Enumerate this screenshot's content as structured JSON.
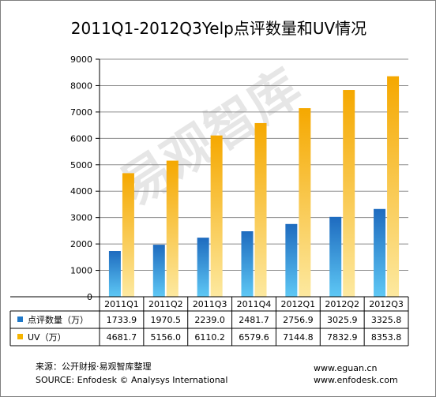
{
  "chart_data": {
    "type": "bar",
    "title": "2011Q1-2012Q3Yelp点评数量和UV情况",
    "categories": [
      "2011Q1",
      "2011Q2",
      "2011Q3",
      "2011Q4",
      "2012Q1",
      "2012Q2",
      "2012Q3"
    ],
    "series": [
      {
        "name": "点评数量（万）",
        "color": "#1f78c8",
        "values": [
          1733.9,
          1970.5,
          2239.0,
          2481.7,
          2756.9,
          3025.9,
          3325.8
        ]
      },
      {
        "name": "UV（万）",
        "color": "#f5b400",
        "values": [
          4681.7,
          5156.0,
          6110.2,
          6579.6,
          7144.8,
          7832.9,
          8353.8
        ]
      }
    ],
    "value_labels": [
      [
        "1733.9",
        "1970.5",
        "2239.0",
        "2481.7",
        "2756.9",
        "3025.9",
        "3325.8"
      ],
      [
        "4681.7",
        "5156.0",
        "6110.2",
        "6579.6",
        "7144.8",
        "7832.9",
        "8353.8"
      ]
    ],
    "ylim": [
      0,
      9000
    ],
    "yticks": [
      "0",
      "1000",
      "2000",
      "3000",
      "4000",
      "5000",
      "6000",
      "7000",
      "8000",
      "9000"
    ],
    "grid": true,
    "legend": "data-table"
  },
  "footer": {
    "source_cn": "来源：公开财报·易观智库整理",
    "source_en": "SOURCE: Enfodesk © Analysys International",
    "url1": "www.eguan.cn",
    "url2": "www.enfodesk.com"
  },
  "watermark": "易观智库"
}
